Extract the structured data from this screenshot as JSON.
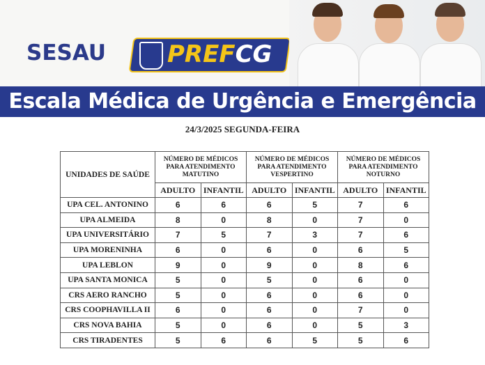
{
  "header": {
    "sesau_logo": "SESAU",
    "pref_logo_part1": "PREF",
    "pref_logo_part2": "CG",
    "title": "Escala Médica de Urgência e Emergência",
    "date": "24/3/2025 SEGUNDA-FEIRA"
  },
  "table": {
    "unit_header": "UNIDADES DE SAÚDE",
    "groups": [
      "NÚMERO DE MÉDICOS PARA ATENDIMENTO MATUTINO",
      "NÚMERO DE MÉDICOS PARA ATENDIMENTO VESPERTINO",
      "NÚMERO DE MÉDICOS PARA ATENDIMENTO NOTURNO"
    ],
    "sub": [
      "ADULTO",
      "INFANTIL",
      "ADULTO",
      "INFANTIL",
      "ADULTO",
      "INFANTIL"
    ],
    "rows": [
      {
        "name": "UPA CEL. ANTONINO",
        "v": [
          "6",
          "6",
          "6",
          "5",
          "7",
          "6"
        ]
      },
      {
        "name": "UPA ALMEIDA",
        "v": [
          "8",
          "0",
          "8",
          "0",
          "7",
          "0"
        ]
      },
      {
        "name": "UPA UNIVERSITÁRIO",
        "v": [
          "7",
          "5",
          "7",
          "3",
          "7",
          "6"
        ]
      },
      {
        "name": "UPA MORENINHA",
        "v": [
          "6",
          "0",
          "6",
          "0",
          "6",
          "5"
        ]
      },
      {
        "name": "UPA LEBLON",
        "v": [
          "9",
          "0",
          "9",
          "0",
          "8",
          "6"
        ]
      },
      {
        "name": "UPA SANTA MONICA",
        "v": [
          "5",
          "0",
          "5",
          "0",
          "6",
          "0"
        ]
      },
      {
        "name": "CRS AERO RANCHO",
        "v": [
          "5",
          "0",
          "6",
          "0",
          "6",
          "0"
        ]
      },
      {
        "name": "CRS COOPHAVILLA II",
        "v": [
          "6",
          "0",
          "6",
          "0",
          "7",
          "0"
        ]
      },
      {
        "name": "CRS NOVA BAHIA",
        "v": [
          "5",
          "0",
          "6",
          "0",
          "5",
          "3"
        ]
      },
      {
        "name": "CRS TIRADENTES",
        "v": [
          "5",
          "6",
          "6",
          "5",
          "5",
          "6"
        ]
      }
    ]
  },
  "colors": {
    "brand_blue": "#283a8e",
    "brand_yellow": "#f5c518"
  }
}
